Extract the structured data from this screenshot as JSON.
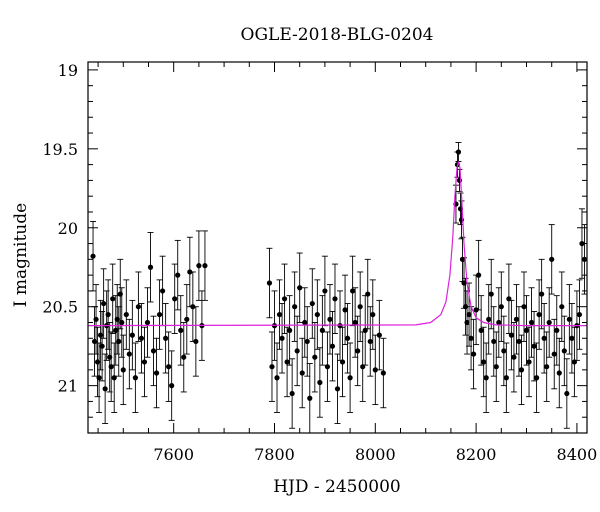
{
  "chart_data": {
    "type": "scatter",
    "title": "OGLE-2018-BLG-0204",
    "xlabel": "HJD - 2450000",
    "ylabel": "I magnitude",
    "xlim": [
      7430,
      8420
    ],
    "ylim": [
      21.3,
      18.95
    ],
    "y_inverted": true,
    "x_ticks": [
      7600,
      7800,
      8000,
      8200,
      8400
    ],
    "y_ticks": [
      19,
      19.5,
      20,
      20.5,
      21
    ],
    "x_tick_labels": [
      "7600",
      "7800",
      "8000",
      "8200",
      "8400"
    ],
    "y_tick_labels": [
      "19",
      "19.5",
      "20",
      "20.5",
      "21"
    ],
    "grid": false,
    "colors": {
      "points": "#000000",
      "model": "#dd22dd"
    },
    "model": {
      "baseline": 20.62,
      "peak_time": 8165,
      "peak_mag": 19.58,
      "x": [
        7430,
        8080,
        8110,
        8130,
        8140,
        8148,
        8154,
        8158,
        8162,
        8165,
        8168,
        8172,
        8176,
        8182,
        8190,
        8200,
        8215,
        8240,
        8300,
        8420
      ],
      "y": [
        20.62,
        20.615,
        20.6,
        20.55,
        20.47,
        20.3,
        20.05,
        19.8,
        19.62,
        19.58,
        19.62,
        19.85,
        20.1,
        20.35,
        20.5,
        20.57,
        20.6,
        20.615,
        20.62,
        20.62
      ]
    },
    "series": [
      {
        "x": [
          7440,
          7443,
          7446,
          7449,
          7452,
          7455,
          7458,
          7461,
          7464,
          7467,
          7470,
          7473,
          7476,
          7479,
          7482,
          7485,
          7488,
          7491,
          7494,
          7497,
          7500,
          7506,
          7512,
          7518,
          7524,
          7530,
          7536,
          7542,
          7548,
          7554,
          7560,
          7566,
          7572,
          7578,
          7584,
          7590,
          7596,
          7602,
          7608,
          7614,
          7620,
          7626,
          7632,
          7638,
          7644,
          7650,
          7656,
          7662,
          7790,
          7795,
          7800,
          7805,
          7810,
          7815,
          7820,
          7825,
          7830,
          7835,
          7840,
          7845,
          7850,
          7855,
          7860,
          7865,
          7870,
          7875,
          7880,
          7885,
          7890,
          7895,
          7900,
          7905,
          7910,
          7915,
          7920,
          7925,
          7930,
          7935,
          7940,
          7945,
          7950,
          7955,
          7960,
          7965,
          7970,
          7975,
          7980,
          7985,
          7990,
          7995,
          8000,
          8008,
          8016,
          8160,
          8163,
          8165,
          8167,
          8169,
          8171,
          8173,
          8176,
          8179,
          8182,
          8186,
          8190,
          8195,
          8200,
          8205,
          8210,
          8215,
          8220,
          8225,
          8230,
          8235,
          8240,
          8245,
          8250,
          8255,
          8260,
          8265,
          8270,
          8275,
          8280,
          8285,
          8290,
          8295,
          8300,
          8305,
          8310,
          8315,
          8320,
          8325,
          8330,
          8335,
          8340,
          8345,
          8350,
          8355,
          8360,
          8365,
          8370,
          8375,
          8380,
          8385,
          8390,
          8395,
          8400,
          8405,
          8410,
          8415
        ],
        "y": [
          20.18,
          20.72,
          20.58,
          20.85,
          20.95,
          20.68,
          20.75,
          20.48,
          21.02,
          20.62,
          20.55,
          20.82,
          20.88,
          20.45,
          20.95,
          20.65,
          20.58,
          20.72,
          20.42,
          20.6,
          20.9,
          20.55,
          20.8,
          20.68,
          20.95,
          20.5,
          20.7,
          20.85,
          20.6,
          20.25,
          20.78,
          20.92,
          20.55,
          20.4,
          20.7,
          20.88,
          21.0,
          20.45,
          20.3,
          20.65,
          20.82,
          20.58,
          20.28,
          20.5,
          20.72,
          20.24,
          20.62,
          20.24,
          20.35,
          20.88,
          20.62,
          20.95,
          20.55,
          20.7,
          20.45,
          20.85,
          20.65,
          21.05,
          20.5,
          20.78,
          20.38,
          20.92,
          20.6,
          20.72,
          21.08,
          20.48,
          20.82,
          20.55,
          20.98,
          20.65,
          20.4,
          20.88,
          20.58,
          20.75,
          20.45,
          21.02,
          20.62,
          20.85,
          20.52,
          20.7,
          20.95,
          20.4,
          20.6,
          20.78,
          20.5,
          20.88,
          20.65,
          20.42,
          20.72,
          20.55,
          20.9,
          20.68,
          20.92,
          19.85,
          19.6,
          19.52,
          19.7,
          19.88,
          19.95,
          20.2,
          20.35,
          20.5,
          20.6,
          20.55,
          20.7,
          20.8,
          20.52,
          20.3,
          20.65,
          20.85,
          20.95,
          20.58,
          20.42,
          20.72,
          20.88,
          20.6,
          20.5,
          20.78,
          20.95,
          20.45,
          20.68,
          20.82,
          20.58,
          20.72,
          20.9,
          20.5,
          20.65,
          20.85,
          20.6,
          20.75,
          20.95,
          20.55,
          20.42,
          20.7,
          20.88,
          20.6,
          20.2,
          20.8,
          20.65,
          20.92,
          20.5,
          20.78,
          21.05,
          20.58,
          20.7,
          20.85,
          20.62,
          20.55,
          20.1,
          20.2
        ],
        "err": [
          0.22,
          0.22,
          0.22,
          0.22,
          0.22,
          0.22,
          0.22,
          0.22,
          0.22,
          0.22,
          0.22,
          0.22,
          0.22,
          0.22,
          0.22,
          0.22,
          0.22,
          0.22,
          0.22,
          0.22,
          0.22,
          0.22,
          0.22,
          0.22,
          0.22,
          0.22,
          0.22,
          0.22,
          0.22,
          0.22,
          0.22,
          0.22,
          0.22,
          0.22,
          0.22,
          0.22,
          0.22,
          0.22,
          0.22,
          0.22,
          0.22,
          0.22,
          0.22,
          0.22,
          0.22,
          0.22,
          0.22,
          0.22,
          0.22,
          0.22,
          0.22,
          0.22,
          0.22,
          0.22,
          0.22,
          0.22,
          0.22,
          0.22,
          0.22,
          0.22,
          0.22,
          0.22,
          0.22,
          0.22,
          0.22,
          0.22,
          0.22,
          0.22,
          0.22,
          0.22,
          0.22,
          0.22,
          0.22,
          0.22,
          0.22,
          0.22,
          0.22,
          0.22,
          0.22,
          0.22,
          0.22,
          0.22,
          0.22,
          0.22,
          0.22,
          0.22,
          0.22,
          0.22,
          0.22,
          0.22,
          0.22,
          0.22,
          0.22,
          0.12,
          0.08,
          0.06,
          0.07,
          0.1,
          0.12,
          0.14,
          0.16,
          0.18,
          0.2,
          0.2,
          0.2,
          0.22,
          0.22,
          0.22,
          0.22,
          0.22,
          0.22,
          0.22,
          0.22,
          0.22,
          0.22,
          0.22,
          0.22,
          0.22,
          0.22,
          0.22,
          0.22,
          0.22,
          0.22,
          0.22,
          0.22,
          0.22,
          0.22,
          0.22,
          0.22,
          0.22,
          0.22,
          0.22,
          0.22,
          0.22,
          0.22,
          0.22,
          0.22,
          0.22,
          0.22,
          0.22,
          0.22,
          0.22,
          0.22,
          0.22,
          0.22,
          0.22,
          0.22,
          0.22,
          0.22,
          0.22
        ]
      }
    ]
  }
}
